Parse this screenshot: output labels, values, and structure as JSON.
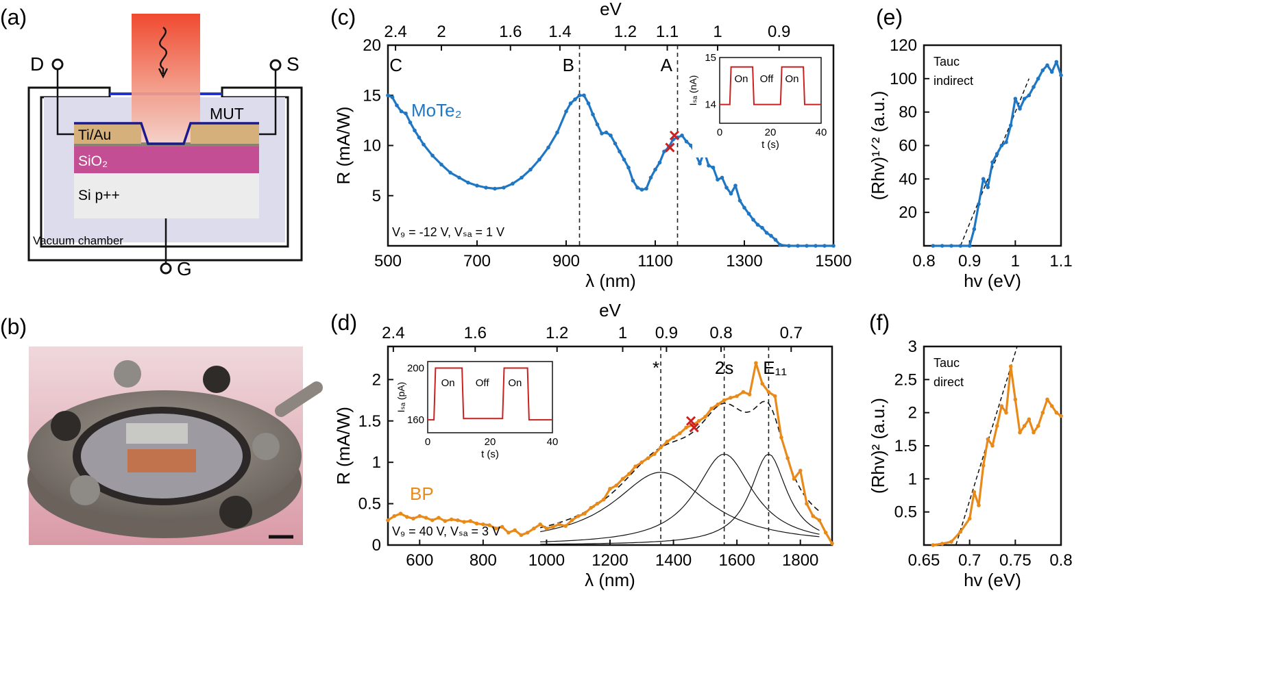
{
  "panels": {
    "a": "(a)",
    "b": "(b)",
    "c": "(c)",
    "d": "(d)",
    "e": "(e)",
    "f": "(f)"
  },
  "schematic": {
    "drain": "D",
    "source": "S",
    "gate": "G",
    "mut": "MUT",
    "contact": "Ti/Au",
    "oxide": "SiO₂",
    "substrate": "Si p++",
    "chamber": "Vacuum chamber"
  },
  "photo": {
    "description_scale_bar": ""
  },
  "colors": {
    "mote2": "#1f77c4",
    "bp": "#e88a1a",
    "inset": "#cc1f1f",
    "dash": "#222222"
  },
  "chart_data": [
    {
      "panel": "c",
      "type": "line",
      "xlabel": "λ (nm)",
      "ylabel": "R (mA/W)",
      "top_axis_label": "eV",
      "top_ticks": [
        "2.4",
        "2",
        "1.6",
        "1.4",
        "1.2",
        "1.1",
        "1",
        "0.9"
      ],
      "top_tick_nm": [
        517,
        620,
        775,
        886,
        1033,
        1127,
        1240,
        1378
      ],
      "xlim": [
        500,
        1500
      ],
      "ylim": [
        0,
        20
      ],
      "xticks": [
        500,
        700,
        900,
        1100,
        1300,
        1500
      ],
      "yticks": [
        5,
        10,
        15,
        20
      ],
      "annotations": [
        "C",
        "B",
        "A"
      ],
      "annotation_x": [
        518,
        905,
        1125
      ],
      "vlines": [
        930,
        1150
      ],
      "condition": "V₉ = -12 V, Vₛₐ = 1 V",
      "series_label": "MoTe₂",
      "series": [
        {
          "x": [
            500,
            510,
            520,
            530,
            540,
            550,
            560,
            570,
            580,
            600,
            620,
            640,
            660,
            680,
            700,
            720,
            740,
            760,
            780,
            800,
            820,
            840,
            860,
            880,
            900,
            910,
            920,
            930,
            940,
            950,
            960,
            970,
            980,
            990,
            1000,
            1010,
            1020,
            1030,
            1040,
            1050,
            1060,
            1070,
            1080,
            1090,
            1100,
            1110,
            1120,
            1130,
            1140,
            1150,
            1160,
            1170,
            1180,
            1190,
            1200,
            1210,
            1220,
            1230,
            1240,
            1250,
            1260,
            1270,
            1280,
            1290,
            1300,
            1310,
            1320,
            1330,
            1340,
            1350,
            1360,
            1370,
            1380,
            1400,
            1420,
            1440,
            1460,
            1480,
            1500
          ],
          "values": [
            15,
            14.8,
            14,
            13.4,
            13.2,
            12.3,
            11.5,
            10.8,
            10.1,
            9.0,
            8.1,
            7.3,
            6.8,
            6.3,
            6.0,
            5.8,
            5.7,
            5.8,
            6.2,
            6.8,
            7.6,
            8.6,
            9.8,
            11.3,
            13.4,
            14.2,
            14.6,
            15,
            15,
            14.2,
            13.1,
            12.1,
            11.2,
            11.3,
            11.0,
            10.2,
            9.4,
            8.6,
            7.8,
            6.5,
            5.8,
            5.6,
            5.7,
            6.8,
            7.6,
            8.3,
            9.4,
            9.8,
            10.6,
            10.8,
            11,
            10.4,
            10.0,
            9.2,
            8.2,
            9.4,
            8.0,
            7.8,
            6.6,
            6.8,
            5.8,
            5.2,
            6.0,
            4.5,
            3.8,
            3.2,
            2.6,
            2.1,
            1.8,
            1.3,
            1.0,
            0.6,
            0.1,
            0,
            0,
            0,
            0,
            0,
            0
          ]
        }
      ],
      "markers": {
        "x": [
          1133,
          1143
        ],
        "values": [
          9.8,
          11
        ]
      },
      "inset": {
        "xlabel": "t (s)",
        "ylabel": "Iₛₐ (nA)",
        "xlim": [
          0,
          40
        ],
        "ylim": [
          13.6,
          15
        ],
        "xticks": [
          0,
          20,
          40
        ],
        "yticks": [
          14,
          15
        ],
        "states": [
          "On",
          "Off",
          "On"
        ],
        "x": [
          0,
          4,
          4.5,
          13,
          13.5,
          24,
          24.5,
          33,
          33.5,
          40
        ],
        "values": [
          14.0,
          14.0,
          14.8,
          14.8,
          14.0,
          14.0,
          14.8,
          14.8,
          14.0,
          14.0
        ]
      }
    },
    {
      "panel": "d",
      "type": "line",
      "xlabel": "λ (nm)",
      "ylabel": "R (mA/W)",
      "top_axis_label": "eV",
      "top_ticks": [
        "2.4",
        "1.6",
        "1.2",
        "1",
        "0.9",
        "0.8",
        "0.7"
      ],
      "top_tick_nm": [
        517,
        775,
        1033,
        1240,
        1378,
        1550,
        1771
      ],
      "xlim": [
        500,
        1900
      ],
      "ylim": [
        0,
        2.4
      ],
      "xticks": [
        600,
        800,
        1000,
        1200,
        1400,
        1600,
        1800
      ],
      "yticks": [
        0,
        0.5,
        1,
        1.5,
        2
      ],
      "annotations": [
        "*",
        "2s",
        "E₁₁"
      ],
      "annotation_x": [
        1345,
        1560,
        1720
      ],
      "vlines": [
        1360,
        1560,
        1700
      ],
      "condition": "V₉ = 40 V, Vₛₐ = 3 V",
      "series_label": "BP",
      "series": [
        {
          "x": [
            500,
            520,
            540,
            560,
            580,
            600,
            620,
            640,
            660,
            680,
            700,
            720,
            740,
            760,
            780,
            800,
            820,
            840,
            860,
            880,
            900,
            920,
            940,
            960,
            980,
            1000,
            1020,
            1040,
            1060,
            1080,
            1100,
            1120,
            1140,
            1160,
            1180,
            1200,
            1220,
            1240,
            1260,
            1280,
            1300,
            1320,
            1340,
            1360,
            1380,
            1400,
            1420,
            1440,
            1460,
            1480,
            1500,
            1520,
            1540,
            1560,
            1580,
            1600,
            1620,
            1640,
            1660,
            1680,
            1700,
            1720,
            1740,
            1760,
            1780,
            1800,
            1820,
            1840,
            1860,
            1880,
            1900
          ],
          "values": [
            0.3,
            0.35,
            0.38,
            0.34,
            0.32,
            0.35,
            0.33,
            0.3,
            0.33,
            0.29,
            0.31,
            0.3,
            0.28,
            0.29,
            0.26,
            0.25,
            0.24,
            0.2,
            0.22,
            0.15,
            0.18,
            0.12,
            0.15,
            0.2,
            0.25,
            0.2,
            0.22,
            0.25,
            0.23,
            0.3,
            0.35,
            0.38,
            0.45,
            0.5,
            0.55,
            0.68,
            0.72,
            0.8,
            0.86,
            0.95,
            1.0,
            1.05,
            1.1,
            1.18,
            1.25,
            1.3,
            1.35,
            1.42,
            1.45,
            1.5,
            1.55,
            1.65,
            1.7,
            1.75,
            1.78,
            1.8,
            1.85,
            1.82,
            2.2,
            1.95,
            1.85,
            1.8,
            1.3,
            1.05,
            0.8,
            0.9,
            0.5,
            0.35,
            0.3,
            0.15,
            0.02
          ]
        }
      ],
      "fit_components": [
        {
          "center": 1360,
          "amplitude": 0.88,
          "width": 180
        },
        {
          "center": 1560,
          "amplitude": 1.1,
          "width": 110
        },
        {
          "center": 1700,
          "amplitude": 1.1,
          "width": 70
        }
      ],
      "markers": {
        "x": [
          1455,
          1465
        ],
        "values": [
          1.5,
          1.42
        ]
      },
      "inset": {
        "xlabel": "t (s)",
        "ylabel": "Iₛₐ (pA)",
        "xlim": [
          0,
          40
        ],
        "ylim": [
          150,
          205
        ],
        "xticks": [
          0,
          20,
          40
        ],
        "yticks": [
          160,
          200
        ],
        "states": [
          "On",
          "Off",
          "On"
        ],
        "x": [
          0,
          2,
          2.5,
          11,
          11.5,
          24,
          24.5,
          32,
          32.5,
          40
        ],
        "values": [
          160,
          160,
          200,
          200,
          161,
          161,
          200,
          200,
          160,
          160
        ]
      }
    },
    {
      "panel": "e",
      "type": "line",
      "xlabel": "hv (eV)",
      "ylabel": "(Rhv)¹ᐟ² (a.u.)",
      "legend": "Tauc indirect",
      "xlim": [
        0.8,
        1.1
      ],
      "ylim": [
        0,
        120
      ],
      "xticks": [
        0.8,
        0.9,
        1,
        1.1
      ],
      "yticks": [
        20,
        40,
        60,
        80,
        100,
        120
      ],
      "series": [
        {
          "x": [
            0.82,
            0.84,
            0.86,
            0.88,
            0.9,
            0.91,
            0.92,
            0.93,
            0.94,
            0.95,
            0.96,
            0.97,
            0.98,
            0.99,
            1.0,
            1.01,
            1.02,
            1.03,
            1.04,
            1.05,
            1.06,
            1.07,
            1.08,
            1.09,
            1.1
          ],
          "values": [
            0,
            0,
            0,
            0,
            0,
            10,
            25,
            40,
            35,
            50,
            55,
            60,
            62,
            72,
            88,
            82,
            88,
            90,
            95,
            100,
            105,
            108,
            104,
            110,
            102
          ]
        }
      ],
      "fit_line": {
        "x": [
          0.88,
          1.03
        ],
        "values": [
          0,
          100
        ]
      }
    },
    {
      "panel": "f",
      "type": "line",
      "xlabel": "hv (eV)",
      "ylabel": "(Rhv)² (a.u.)",
      "legend": "Tauc direct",
      "xlim": [
        0.65,
        0.8
      ],
      "ylim": [
        0,
        3
      ],
      "xticks": [
        0.65,
        0.7,
        0.75,
        0.8
      ],
      "yticks": [
        0.5,
        1,
        1.5,
        2,
        2.5,
        3
      ],
      "series": [
        {
          "x": [
            0.66,
            0.67,
            0.68,
            0.69,
            0.7,
            0.705,
            0.71,
            0.715,
            0.72,
            0.725,
            0.73,
            0.735,
            0.74,
            0.745,
            0.75,
            0.755,
            0.76,
            0.765,
            0.77,
            0.775,
            0.78,
            0.785,
            0.79,
            0.795,
            0.8
          ],
          "values": [
            0,
            0.02,
            0.05,
            0.2,
            0.4,
            0.8,
            0.6,
            1.2,
            1.6,
            1.5,
            1.8,
            2.1,
            2.0,
            2.7,
            2.2,
            1.7,
            1.8,
            1.9,
            1.7,
            1.8,
            2.0,
            2.2,
            2.1,
            2.0,
            1.95
          ]
        }
      ],
      "fit_line": {
        "x": [
          0.685,
          0.752
        ],
        "values": [
          0,
          3
        ]
      }
    }
  ]
}
